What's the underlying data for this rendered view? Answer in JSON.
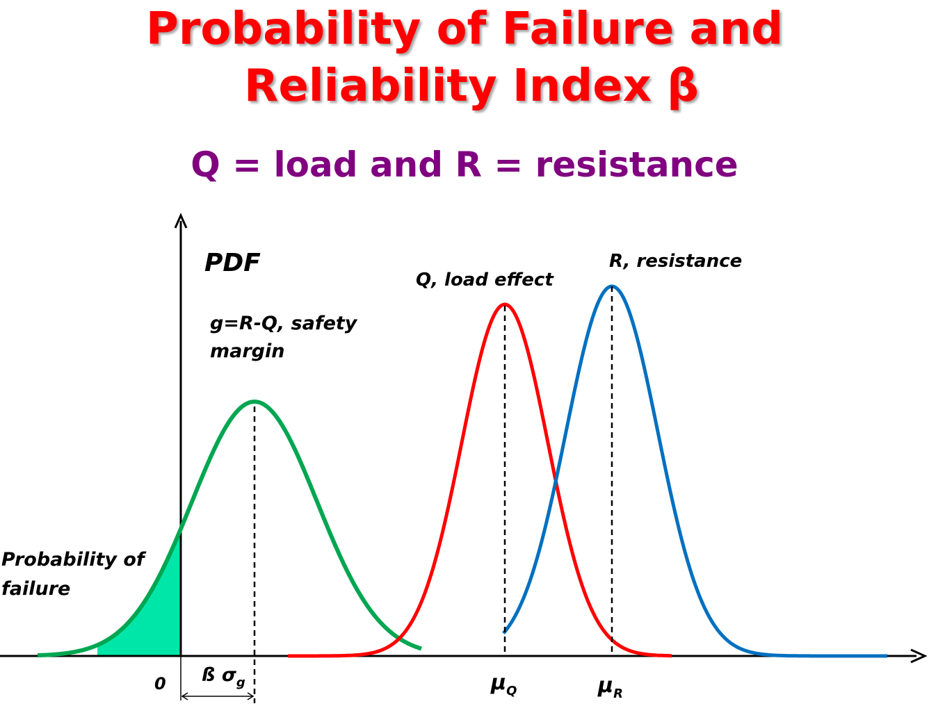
{
  "title": {
    "line1": "Probability of Failure and",
    "line2": "Reliability Index β"
  },
  "subtitle": "Q = load and R = resistance",
  "labels": {
    "pdf": "PDF",
    "g_line1": "g=R-Q, safety",
    "g_line2": "margin",
    "q_curve": "Q, load effect",
    "r_curve": "R, resistance",
    "pf_line1": "Probability of",
    "pf_line2": "failure",
    "zero": "0",
    "beta_sigma": "ß σ",
    "beta_sigma_sub": "g",
    "mu_q": "μ",
    "mu_q_sub": "Q",
    "mu_r": "μ",
    "mu_r_sub": "R"
  },
  "colors": {
    "title": "#ff0000",
    "subtitle": "#800080",
    "g_curve": "#00a651",
    "failure_fill": "#00e6a8",
    "q_curve": "#ff0000",
    "r_curve": "#0070c0",
    "axis": "#000000"
  },
  "icons": {
    "x_axis_arrow": "arrow-right-icon",
    "y_axis_arrow": "arrow-up-icon"
  }
}
